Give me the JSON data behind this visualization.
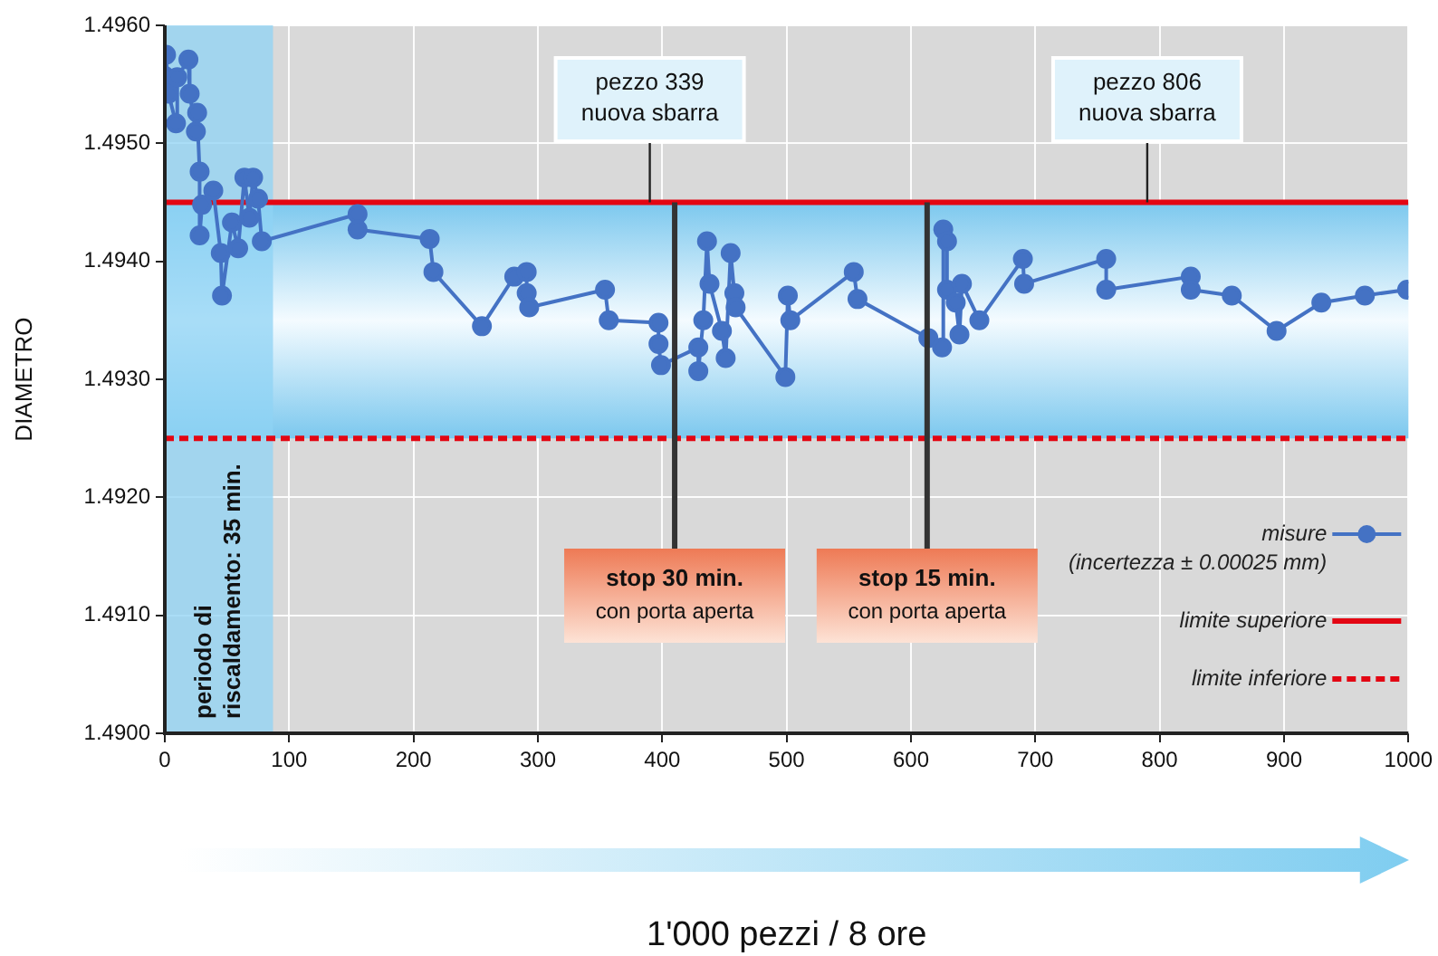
{
  "chart_data": {
    "type": "line",
    "xlabel": "1'000 pezzi / 8 ore",
    "ylabel": "DIAMETRO",
    "xlim": [
      0,
      1000
    ],
    "xticks": [
      0,
      100,
      200,
      300,
      400,
      500,
      600,
      700,
      800,
      900,
      1000
    ],
    "ylim": [
      1.49,
      1.496
    ],
    "yticks": [
      {
        "value": 1.49,
        "label": "1.4900"
      },
      {
        "value": 1.491,
        "label": "1.4910"
      },
      {
        "value": 1.492,
        "label": "1.4920"
      },
      {
        "value": 1.493,
        "label": "1.4930"
      },
      {
        "value": 1.494,
        "label": "1.4940"
      },
      {
        "value": 1.495,
        "label": "1.4950"
      },
      {
        "value": 1.496,
        "label": "1.4960"
      }
    ],
    "grid": true,
    "legend": "bottom right",
    "series": [
      {
        "name": "misure\n(incertezza ± 0.00025 mm)",
        "marker": "circle",
        "line_style": "solid",
        "color": "#4472c4",
        "x": [
          0,
          1,
          3,
          9,
          10,
          19,
          20,
          25,
          26,
          28,
          28,
          30,
          39,
          45,
          46,
          54,
          59,
          64,
          68,
          71,
          75,
          78,
          155,
          155,
          213,
          216,
          255,
          281,
          291,
          291,
          293,
          354,
          357,
          397,
          397,
          399,
          429,
          429,
          433,
          436,
          438,
          448,
          451,
          455,
          458,
          459,
          499,
          501,
          503,
          554,
          557,
          614,
          625,
          626,
          629,
          629,
          636,
          639,
          641,
          655,
          690,
          691,
          757,
          757,
          825,
          825,
          858,
          894,
          930,
          965,
          999
        ],
        "values": [
          1.49557,
          1.49575,
          1.49542,
          1.49517,
          1.49556,
          1.49571,
          1.49542,
          1.4951,
          1.49526,
          1.49476,
          1.49422,
          1.49448,
          1.4946,
          1.49407,
          1.49371,
          1.49433,
          1.49411,
          1.49471,
          1.49437,
          1.49471,
          1.49453,
          1.49417,
          1.4944,
          1.49427,
          1.49419,
          1.49391,
          1.49345,
          1.49387,
          1.49391,
          1.49373,
          1.49361,
          1.49376,
          1.4935,
          1.49348,
          1.4933,
          1.49312,
          1.49327,
          1.49307,
          1.4935,
          1.49417,
          1.49381,
          1.49341,
          1.49318,
          1.49407,
          1.49373,
          1.49361,
          1.49302,
          1.49371,
          1.4935,
          1.49391,
          1.49368,
          1.49335,
          1.49327,
          1.49427,
          1.49417,
          1.49376,
          1.49365,
          1.49338,
          1.49381,
          1.4935,
          1.49402,
          1.49381,
          1.49402,
          1.49376,
          1.49387,
          1.49376,
          1.49371,
          1.49341,
          1.49365,
          1.49371,
          1.49376
        ]
      },
      {
        "name": "limite superiore",
        "marker": "none",
        "line_style": "solid",
        "color": "#e30613",
        "x": [
          0,
          1000
        ],
        "values": [
          1.4945,
          1.4945
        ]
      },
      {
        "name": "limite inferiore",
        "marker": "none",
        "line_style": "dashed",
        "color": "#e30613",
        "x": [
          0,
          1000
        ],
        "values": [
          1.4925,
          1.4925
        ]
      }
    ],
    "bands": [
      {
        "axis": "x",
        "from": 0,
        "to": 87,
        "label": "periodo di riscaldamento: 35 min.",
        "color": "#8fd3f4"
      },
      {
        "axis": "y",
        "from": 1.4925,
        "to": 1.4945,
        "color": "#7cc8ee"
      }
    ],
    "ref_lines": [
      {
        "axis": "x",
        "value": 410,
        "label": "stop 30 min.\ncon porta aperta",
        "color": "#333333"
      },
      {
        "axis": "x",
        "value": 613,
        "label": "stop 15 min.\ncon porta aperta",
        "color": "#333333"
      }
    ],
    "annotations": [
      {
        "text": "pezzo 339\nnuova sbarra",
        "x": 390,
        "y": 1.4945
      },
      {
        "text": "pezzo 806\nnuova sbarra",
        "x": 790,
        "y": 1.4945
      }
    ]
  }
}
